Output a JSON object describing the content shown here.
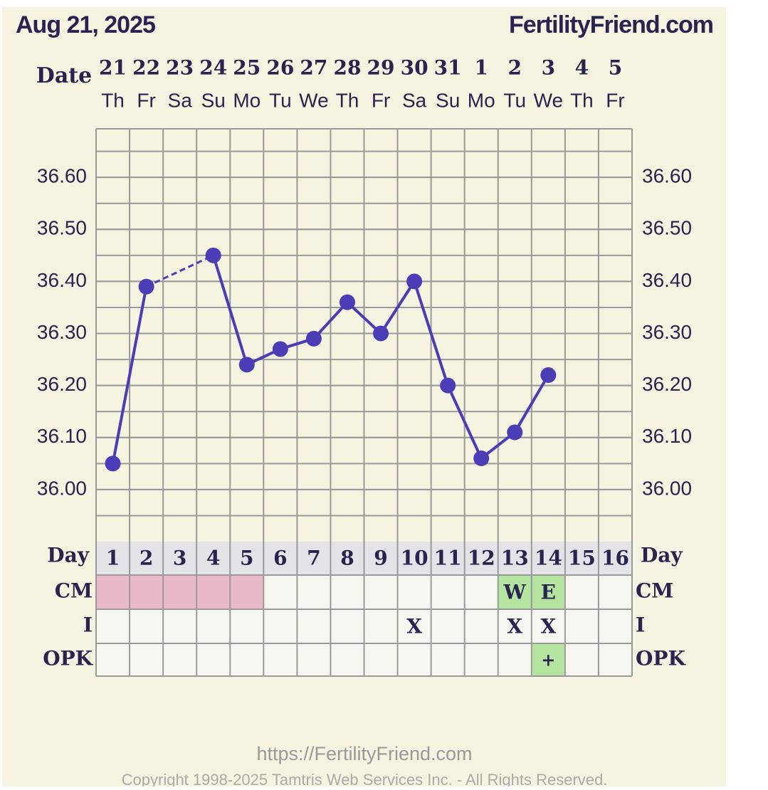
{
  "header": {
    "date": "Aug 21, 2025",
    "site": "FertilityFriend.com"
  },
  "chart_data": {
    "type": "line",
    "date_label": "Date",
    "dates": [
      "21",
      "22",
      "23",
      "24",
      "25",
      "26",
      "27",
      "28",
      "29",
      "30",
      "31",
      "1",
      "2",
      "3",
      "4",
      "5"
    ],
    "weekdays": [
      "Th",
      "Fr",
      "Sa",
      "Su",
      "Mo",
      "Tu",
      "We",
      "Th",
      "Fr",
      "Sa",
      "Su",
      "Mo",
      "Tu",
      "We",
      "Th",
      "Fr"
    ],
    "values": [
      36.05,
      36.39,
      null,
      36.45,
      36.24,
      36.27,
      36.29,
      36.36,
      36.3,
      36.4,
      36.2,
      36.06,
      36.11,
      36.22,
      null,
      null
    ],
    "color": "#4a3db5",
    "ylim": [
      35.9,
      36.7
    ],
    "yticks": [
      {
        "value": 36.0,
        "label": "36.00"
      },
      {
        "value": 36.1,
        "label": "36.10"
      },
      {
        "value": 36.2,
        "label": "36.20"
      },
      {
        "value": 36.3,
        "label": "36.30"
      },
      {
        "value": 36.4,
        "label": "36.40"
      },
      {
        "value": 36.5,
        "label": "36.50"
      },
      {
        "value": 36.6,
        "label": "36.60"
      }
    ],
    "grid": true
  },
  "table": {
    "day_label": "Day",
    "days": [
      1,
      2,
      3,
      4,
      5,
      6,
      7,
      8,
      9,
      10,
      11,
      12,
      13,
      14,
      15,
      16
    ],
    "rows": [
      {
        "label": "CM",
        "cells": [
          null,
          null,
          null,
          null,
          null,
          null,
          null,
          null,
          null,
          null,
          null,
          null,
          "W",
          "E",
          null,
          null
        ],
        "colors": [
          "#e9b9c8",
          "#e9b9c8",
          "#e9b9c8",
          "#e9b9c8",
          "#e9b9c8",
          null,
          null,
          null,
          null,
          null,
          null,
          null,
          "#b5e3a0",
          "#b5e3a0",
          null,
          null
        ]
      },
      {
        "label": "I",
        "cells": [
          null,
          null,
          null,
          null,
          null,
          null,
          null,
          null,
          null,
          "X",
          null,
          null,
          "X",
          "X",
          null,
          null
        ],
        "colors": [
          null,
          null,
          null,
          null,
          null,
          null,
          null,
          null,
          null,
          null,
          null,
          null,
          null,
          null,
          null,
          null
        ]
      },
      {
        "label": "OPK",
        "cells": [
          null,
          null,
          null,
          null,
          null,
          null,
          null,
          null,
          null,
          null,
          null,
          null,
          null,
          "+",
          null,
          null
        ],
        "colors": [
          null,
          null,
          null,
          null,
          null,
          null,
          null,
          null,
          null,
          null,
          null,
          null,
          null,
          "#b5e3a0",
          null,
          null
        ]
      }
    ]
  },
  "footer": {
    "url": "https://FertilityFriend.com",
    "copyright": "Copyright 1998-2025 Tamtris Web Services Inc. - All Rights Reserved."
  }
}
